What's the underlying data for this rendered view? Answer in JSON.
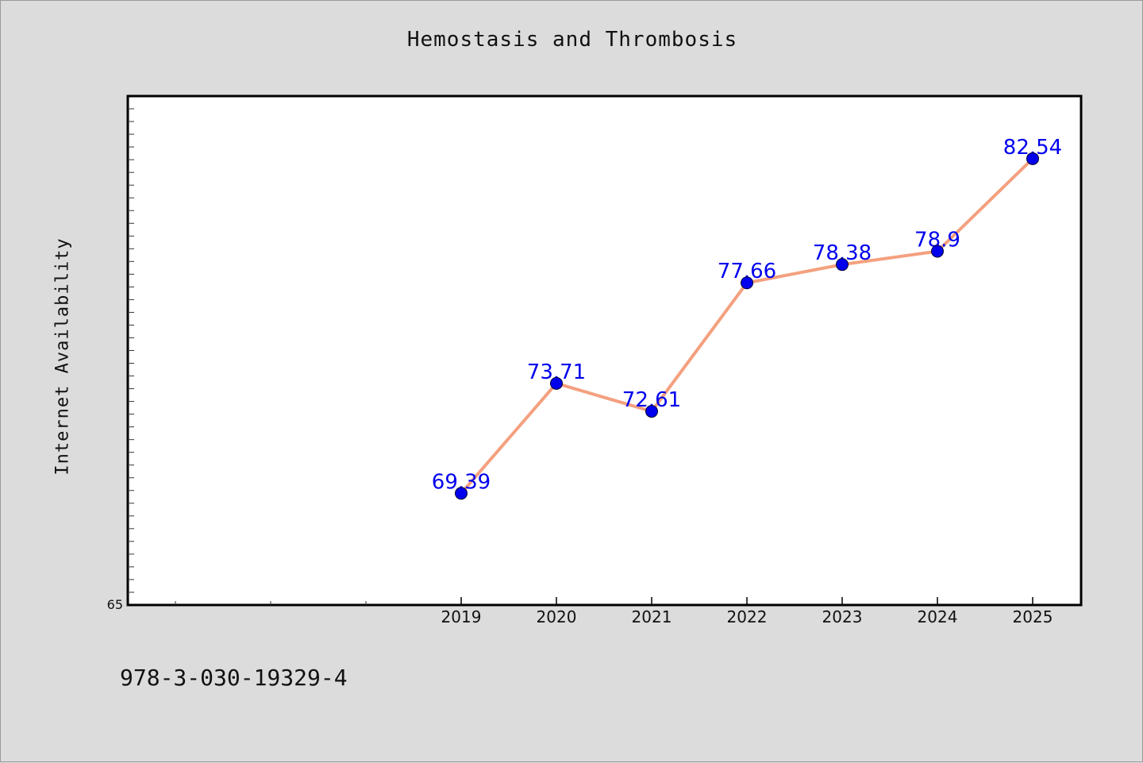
{
  "chart_data": {
    "type": "line",
    "title": "Hemostasis and Thrombosis",
    "xlabel": "",
    "ylabel": "Internet Availability",
    "categories": [
      "2019",
      "2020",
      "2021",
      "2022",
      "2023",
      "2024",
      "2025"
    ],
    "series": [
      {
        "values": [
          69.39,
          73.71,
          72.61,
          77.66,
          78.38,
          78.9,
          82.54
        ]
      }
    ],
    "data_labels": [
      "69.39",
      "73.71",
      "72.61",
      "77.66",
      "78.38",
      "78.9",
      "82.54"
    ],
    "y_tick_labels": [
      "65"
    ],
    "ylim": [
      65,
      85
    ],
    "grid": false,
    "colors": {
      "line": "#f4a07f",
      "marker": "#0000ee",
      "label": "#0000ee",
      "background": "#dcdcdc",
      "plot_bg": "#ffffff"
    }
  },
  "footer": {
    "code": "978-3-030-19329-4"
  }
}
